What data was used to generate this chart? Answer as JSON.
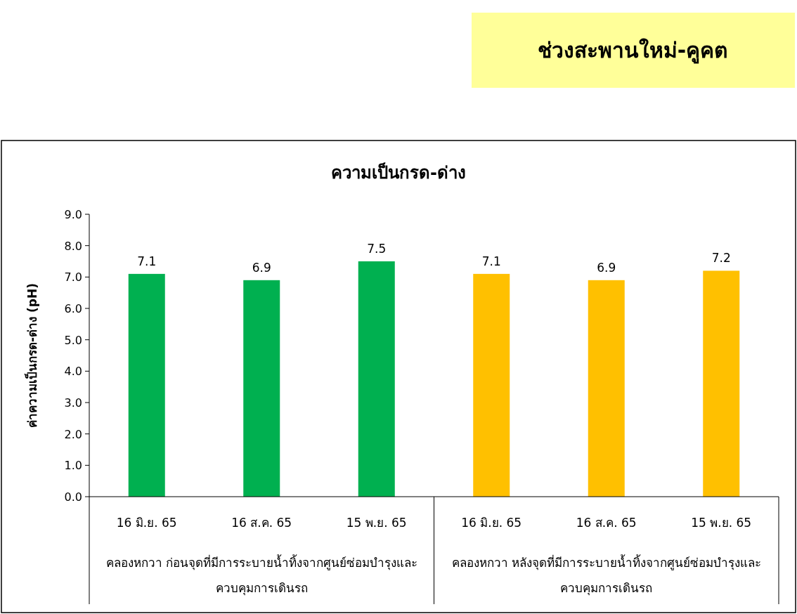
{
  "chart_data": {
    "type": "bar",
    "title": "ความเป็นกรด-ด่าง",
    "ylabel": "ค่าความเป็นกรด-ด่าง (pH)",
    "categories": [
      "16 มิ.ย. 65",
      "16 ส.ค. 65",
      "15 พ.ย. 65",
      "16 มิ.ย. 65",
      "16 ส.ค. 65",
      "15 พ.ย. 65"
    ],
    "values": [
      7.1,
      6.9,
      7.5,
      7.1,
      6.9,
      7.2
    ],
    "colors": [
      "#00b050",
      "#00b050",
      "#00b050",
      "#ffc000",
      "#ffc000",
      "#ffc000"
    ],
    "data_labels": true,
    "ylim": [
      0,
      9
    ],
    "yticks": [
      {
        "value": 0,
        "label": "0.0"
      },
      {
        "value": 1,
        "label": "1.0"
      },
      {
        "value": 2,
        "label": "2.0"
      },
      {
        "value": 3,
        "label": "3.0"
      },
      {
        "value": 4,
        "label": "4.0"
      },
      {
        "value": 5,
        "label": "5.0"
      },
      {
        "value": 6,
        "label": "6.0"
      },
      {
        "value": 7,
        "label": "7.0"
      },
      {
        "value": 8,
        "label": "8.0"
      },
      {
        "value": 9,
        "label": "9.0"
      }
    ],
    "annotations": [
      "ช่วงสะพานใหม่-คูคต",
      "คลองหกวา ก่อนจุดที่มีการระบายน้ำทิ้งจากศูนย์ซ่อมบำรุงและ\nควบคุมการเดินรถ",
      "คลองหกวา หลังจุดที่มีการระบายน้ำทิ้งจากศูนย์ซ่อมบำรุงและ\nควบคุมการเดินรถ"
    ]
  }
}
